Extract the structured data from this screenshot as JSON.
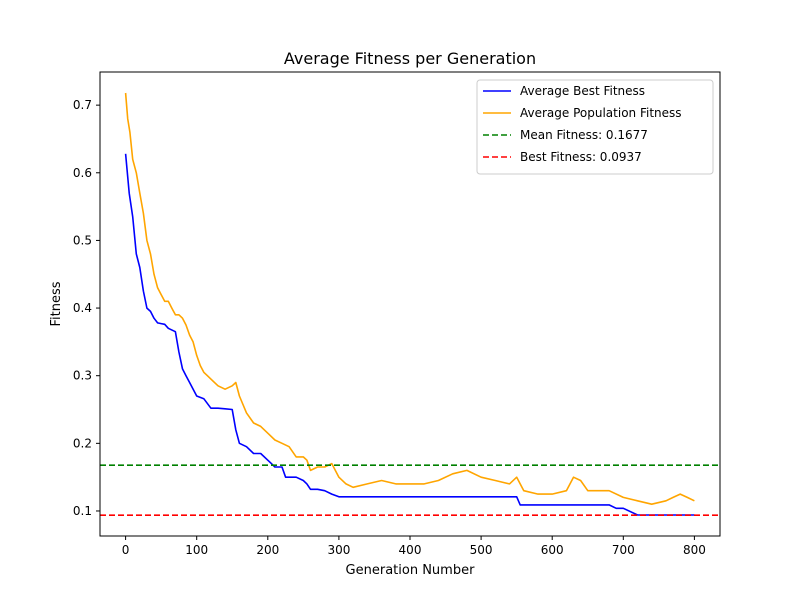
{
  "chart_data": {
    "type": "line",
    "title": "Average Fitness per Generation",
    "xlabel": "Generation Number",
    "ylabel": "Fitness",
    "xlim": [
      -36,
      836
    ],
    "ylim": [
      0.063,
      0.749
    ],
    "xticks": [
      0,
      100,
      200,
      300,
      400,
      500,
      600,
      700,
      800
    ],
    "yticks": [
      0.1,
      0.2,
      0.3,
      0.4,
      0.5,
      0.6,
      0.7
    ],
    "xtick_labels": [
      "0",
      "100",
      "200",
      "300",
      "400",
      "500",
      "600",
      "700",
      "800"
    ],
    "ytick_labels": [
      "0.1",
      "0.2",
      "0.3",
      "0.4",
      "0.5",
      "0.6",
      "0.7"
    ],
    "grid": false,
    "legend_position": "top-right",
    "series": [
      {
        "name": "Average Best Fitness",
        "color": "#0000ff",
        "style": "solid",
        "x": [
          0,
          5,
          10,
          15,
          20,
          25,
          30,
          35,
          40,
          45,
          50,
          55,
          60,
          70,
          75,
          80,
          85,
          90,
          100,
          110,
          120,
          130,
          140,
          150,
          155,
          160,
          170,
          180,
          185,
          190,
          200,
          205,
          210,
          220,
          225,
          230,
          240,
          250,
          255,
          260,
          270,
          280,
          290,
          300,
          310,
          320,
          400,
          500,
          550,
          555,
          560,
          600,
          650,
          680,
          690,
          700,
          720,
          750,
          800
        ],
        "y": [
          0.628,
          0.57,
          0.535,
          0.48,
          0.46,
          0.425,
          0.4,
          0.395,
          0.385,
          0.378,
          0.377,
          0.376,
          0.37,
          0.365,
          0.335,
          0.31,
          0.3,
          0.29,
          0.27,
          0.266,
          0.252,
          0.252,
          0.251,
          0.25,
          0.22,
          0.2,
          0.195,
          0.185,
          0.185,
          0.185,
          0.175,
          0.17,
          0.165,
          0.165,
          0.15,
          0.15,
          0.15,
          0.145,
          0.14,
          0.132,
          0.132,
          0.13,
          0.125,
          0.121,
          0.121,
          0.121,
          0.121,
          0.121,
          0.121,
          0.109,
          0.109,
          0.109,
          0.109,
          0.109,
          0.104,
          0.104,
          0.094,
          0.094,
          0.094
        ]
      },
      {
        "name": "Average Population Fitness",
        "color": "#ffa500",
        "style": "solid",
        "x": [
          0,
          3,
          6,
          10,
          15,
          20,
          25,
          30,
          35,
          40,
          45,
          50,
          55,
          60,
          65,
          70,
          75,
          80,
          85,
          90,
          95,
          100,
          105,
          110,
          115,
          120,
          130,
          140,
          150,
          155,
          160,
          170,
          180,
          190,
          200,
          210,
          220,
          230,
          240,
          250,
          255,
          260,
          270,
          280,
          290,
          300,
          310,
          320,
          340,
          360,
          380,
          400,
          420,
          440,
          460,
          480,
          500,
          520,
          540,
          550,
          560,
          580,
          600,
          620,
          630,
          640,
          650,
          660,
          680,
          700,
          720,
          740,
          760,
          770,
          780,
          790,
          800
        ],
        "y": [
          0.718,
          0.68,
          0.66,
          0.62,
          0.6,
          0.57,
          0.54,
          0.5,
          0.48,
          0.45,
          0.43,
          0.42,
          0.41,
          0.41,
          0.4,
          0.39,
          0.39,
          0.385,
          0.375,
          0.36,
          0.35,
          0.33,
          0.315,
          0.305,
          0.3,
          0.295,
          0.285,
          0.28,
          0.285,
          0.29,
          0.27,
          0.245,
          0.23,
          0.225,
          0.215,
          0.205,
          0.2,
          0.195,
          0.18,
          0.18,
          0.175,
          0.16,
          0.165,
          0.165,
          0.17,
          0.15,
          0.14,
          0.135,
          0.14,
          0.145,
          0.14,
          0.14,
          0.14,
          0.145,
          0.155,
          0.16,
          0.15,
          0.145,
          0.14,
          0.15,
          0.13,
          0.125,
          0.125,
          0.13,
          0.15,
          0.145,
          0.13,
          0.13,
          0.13,
          0.12,
          0.115,
          0.11,
          0.115,
          0.12,
          0.125,
          0.12,
          0.115
        ]
      },
      {
        "name": "Mean Fitness: 0.1677",
        "color": "#008000",
        "style": "dashed",
        "hline": 0.1677
      },
      {
        "name": "Best Fitness: 0.0937",
        "color": "#ff0000",
        "style": "dashed",
        "hline": 0.0937
      }
    ]
  }
}
